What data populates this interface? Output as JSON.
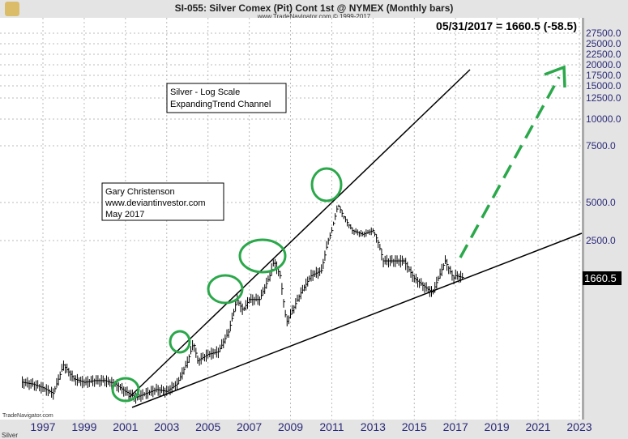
{
  "header": {
    "title": "SI-055:  Silver Comex (Pit) Cont 1st @ NYMEX  (Monthly bars)",
    "subtitle": "www.TradeNavigator.com © 1999-2017",
    "last_value": "05/31/2017 = 1660.5 (-58.5)",
    "watermark": "TradeNavigator.com",
    "footer": "Silver"
  },
  "chart_data": {
    "type": "line",
    "title": "SI-055:  Silver Comex (Pit) Cont 1st @ NYMEX  (Monthly bars)",
    "y_scale": "log",
    "x_ticks": [
      "1997",
      "1999",
      "2001",
      "2003",
      "2005",
      "2007",
      "2009",
      "2011",
      "2013",
      "2015",
      "2017",
      "2019",
      "2021",
      "2023"
    ],
    "y_ticks": [
      "27500.0",
      "25000.0",
      "22500.0",
      "20000.0",
      "17500.0",
      "15000.0",
      "12500.0",
      "10000.0",
      "7500.0",
      "5000.0",
      "2500.0"
    ],
    "last_price_label": "1660.5",
    "grid": true,
    "series": [
      {
        "x": [
          1996.0,
          1996.5,
          1997.0,
          1997.5,
          1998.0,
          1998.5,
          1999.0,
          1999.5,
          2000.0,
          2000.5,
          2001.0,
          2001.5,
          2002.0,
          2002.5,
          2003.0,
          2003.5,
          2004.0,
          2004.3,
          2004.5,
          2005.0,
          2005.5,
          2006.0,
          2006.4,
          2006.7,
          2007.0,
          2007.5,
          2008.0,
          2008.2,
          2008.5,
          2008.8,
          2009.0,
          2009.5,
          2010.0,
          2010.5,
          2011.0,
          2011.3,
          2011.6,
          2012.0,
          2012.5,
          2013.0,
          2013.5,
          2014.0,
          2014.5,
          2015.0,
          2015.5,
          2015.9,
          2016.0,
          2016.5,
          2016.9,
          2017.0,
          2017.4
        ],
        "values": [
          510,
          500,
          480,
          450,
          620,
          530,
          510,
          520,
          520,
          500,
          460,
          430,
          450,
          470,
          460,
          500,
          640,
          800,
          650,
          700,
          720,
          900,
          1300,
          1150,
          1300,
          1300,
          1700,
          2000,
          1700,
          1000,
          1100,
          1400,
          1700,
          1800,
          3000,
          4800,
          3800,
          3000,
          2800,
          3000,
          2000,
          2000,
          2000,
          1650,
          1500,
          1400,
          1500,
          2000,
          1650,
          1700,
          1660.5
        ]
      }
    ],
    "trendlines": [
      {
        "kind": "upper channel line"
      },
      {
        "kind": "lower support line"
      }
    ],
    "annotations": {
      "box1": [
        "Silver - Log Scale",
        "ExpandingTrend Channel"
      ],
      "box2": [
        "Gary Christenson",
        "www.deviantinvestor.com",
        "May 2017"
      ]
    },
    "colors": {
      "price": "#000000",
      "circles": "#2aa84a",
      "arrow": "#2aa84a",
      "axis_text": "#2a2a7a"
    }
  }
}
